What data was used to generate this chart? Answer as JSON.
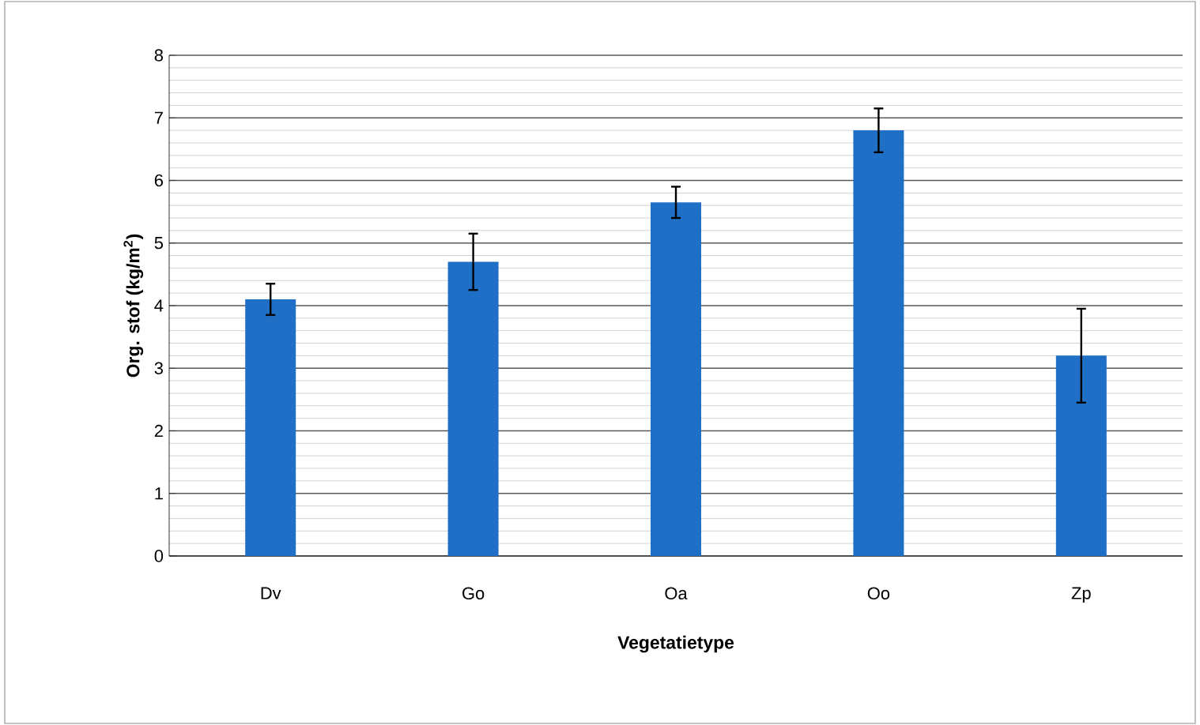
{
  "chart_data": {
    "type": "bar",
    "xlabel": "Vegetatietype",
    "ylabel": "Org. stof (kg/m$^{2}$)",
    "categories": [
      "Dv",
      "Go",
      "Oa",
      "Oo",
      "Zp"
    ],
    "values": [
      4.1,
      4.7,
      5.65,
      6.8,
      3.2
    ],
    "errors": [
      0.25,
      0.45,
      0.25,
      0.35,
      0.75
    ],
    "color": "#1f6fc6",
    "ylim": [
      0,
      8
    ],
    "yticks": [
      0,
      1,
      2,
      3,
      4,
      5,
      6,
      7,
      8
    ],
    "grid": "y"
  }
}
